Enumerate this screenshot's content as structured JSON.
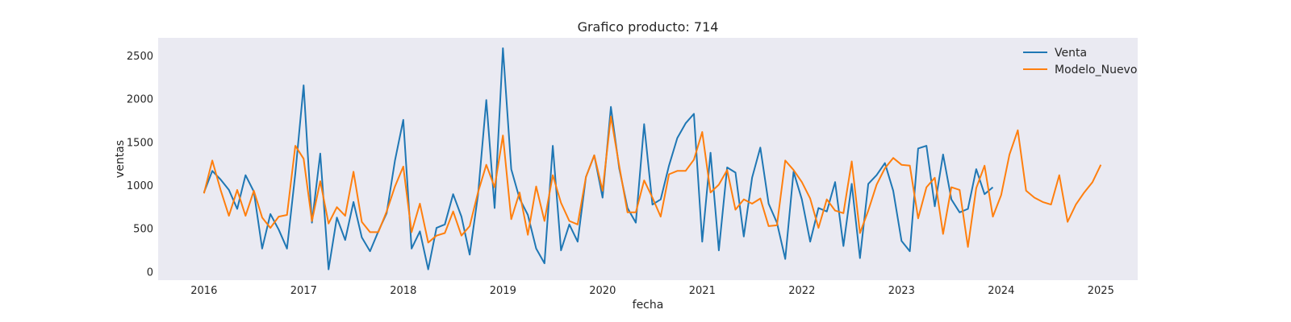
{
  "chart_data": {
    "type": "line",
    "title": "Grafico producto: 714",
    "xlabel": "fecha",
    "ylabel": "ventas",
    "xlim": [
      2015.54,
      2025.37
    ],
    "ylim": [
      -95,
      2710
    ],
    "xticks": [
      2016,
      2017,
      2018,
      2019,
      2020,
      2021,
      2022,
      2023,
      2024,
      2025
    ],
    "yticks": [
      0,
      500,
      1000,
      1500,
      2000,
      2500
    ],
    "grid": false,
    "legend_position": "top-right",
    "background": "#EAEAF2",
    "x_start": "2016-01",
    "x_step": "monthly",
    "series": [
      {
        "name": "Venta",
        "color": "#1F77B4",
        "values": [
          920,
          1170,
          1070,
          950,
          730,
          1120,
          930,
          270,
          670,
          490,
          270,
          1140,
          2160,
          570,
          1370,
          30,
          630,
          370,
          810,
          400,
          240,
          470,
          680,
          1290,
          1760,
          270,
          470,
          30,
          510,
          550,
          900,
          640,
          200,
          890,
          1990,
          740,
          2590,
          1190,
          850,
          660,
          270,
          100,
          1460,
          250,
          550,
          350,
          1100,
          1350,
          860,
          1910,
          1200,
          740,
          570,
          1710,
          780,
          840,
          1230,
          1550,
          1720,
          1830,
          350,
          1380,
          250,
          1210,
          1150,
          410,
          1090,
          1440,
          790,
          570,
          150,
          1160,
          840,
          350,
          740,
          700,
          1040,
          300,
          1020,
          160,
          1020,
          1120,
          1260,
          940,
          360,
          240,
          1430,
          1460,
          760,
          1360,
          840,
          690,
          730,
          1190,
          900,
          980
        ]
      },
      {
        "name": "Modelo_Nuevo",
        "color": "#FF7F0E",
        "values": [
          910,
          1290,
          950,
          650,
          950,
          650,
          940,
          630,
          510,
          640,
          660,
          1460,
          1310,
          590,
          1050,
          560,
          750,
          650,
          1160,
          580,
          460,
          460,
          700,
          990,
          1220,
          460,
          790,
          340,
          420,
          450,
          700,
          420,
          530,
          920,
          1240,
          980,
          1580,
          610,
          920,
          430,
          990,
          590,
          1120,
          800,
          590,
          550,
          1100,
          1350,
          940,
          1800,
          1230,
          690,
          690,
          1060,
          860,
          640,
          1130,
          1170,
          1170,
          1300,
          1620,
          920,
          1010,
          1180,
          720,
          840,
          790,
          850,
          530,
          540,
          1290,
          1180,
          1040,
          850,
          510,
          840,
          710,
          680,
          1280,
          450,
          710,
          1010,
          1200,
          1320,
          1240,
          1230,
          620,
          980,
          1090,
          440,
          980,
          950,
          290,
          970,
          1230,
          640,
          890,
          1360,
          1640,
          940,
          860,
          810,
          780,
          1120,
          580,
          780,
          920,
          1040,
          1240
        ]
      }
    ]
  }
}
